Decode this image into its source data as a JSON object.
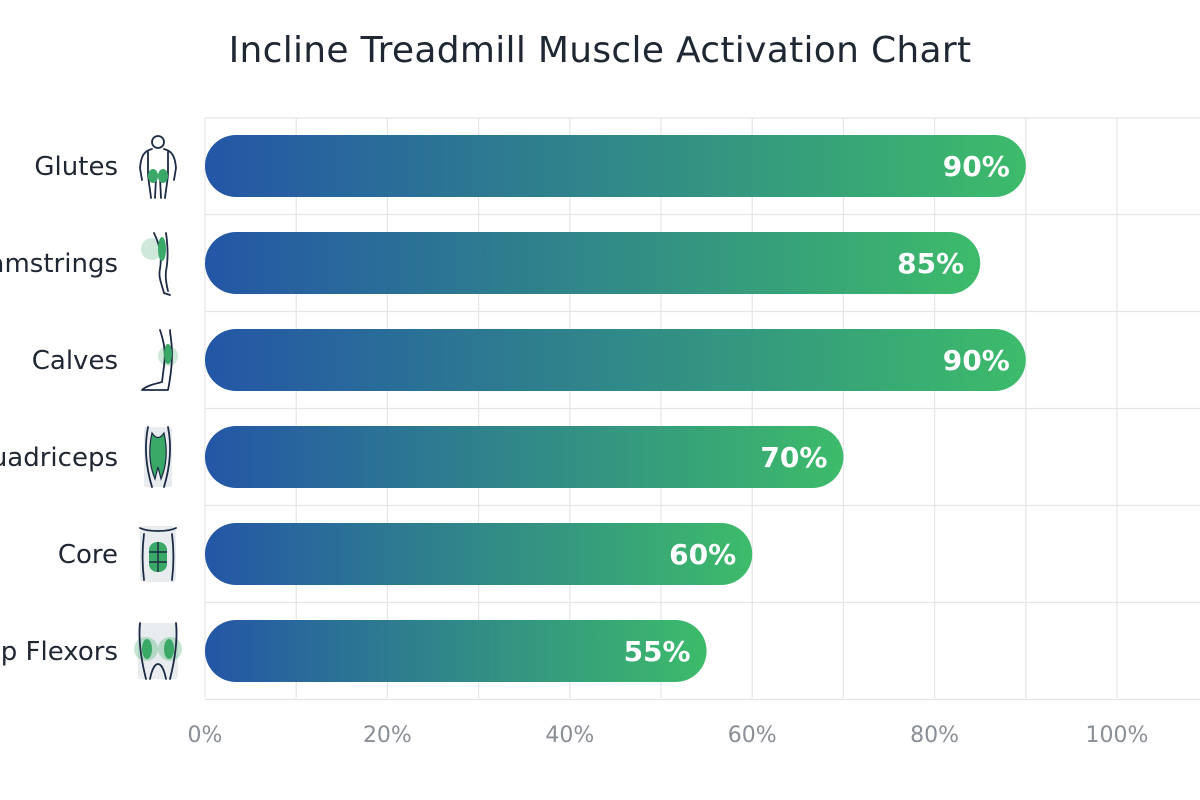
{
  "chart_data": {
    "type": "bar",
    "orientation": "horizontal",
    "title": "Incline Treadmill Muscle Activation Chart",
    "categories": [
      "Glutes",
      "Hamstrings",
      "Calves",
      "Quadriceps",
      "Core",
      "Hip Flexors"
    ],
    "values": [
      90,
      85,
      90,
      70,
      60,
      55
    ],
    "value_labels": [
      "90%",
      "85%",
      "90%",
      "70%",
      "60%",
      "55%"
    ],
    "category_icons": [
      "body-glutes-icon",
      "leg-hamstring-icon",
      "leg-calf-icon",
      "thigh-quadriceps-icon",
      "torso-core-icon",
      "hips-hip-flexor-icon"
    ],
    "x_ticks": [
      0,
      20,
      40,
      60,
      80,
      100
    ],
    "x_tick_labels": [
      "0%",
      "20%",
      "40%",
      "60%",
      "80%",
      "100%"
    ],
    "xlim": [
      0,
      100
    ],
    "xlabel": "",
    "ylabel": "",
    "grid": true,
    "legend": "none",
    "colors": {
      "bar_gradient_start": "#2456a6",
      "bar_gradient_end": "#3dbb6a",
      "muscle_highlight": "#3aa867",
      "icon_stroke": "#1c2a44"
    }
  }
}
